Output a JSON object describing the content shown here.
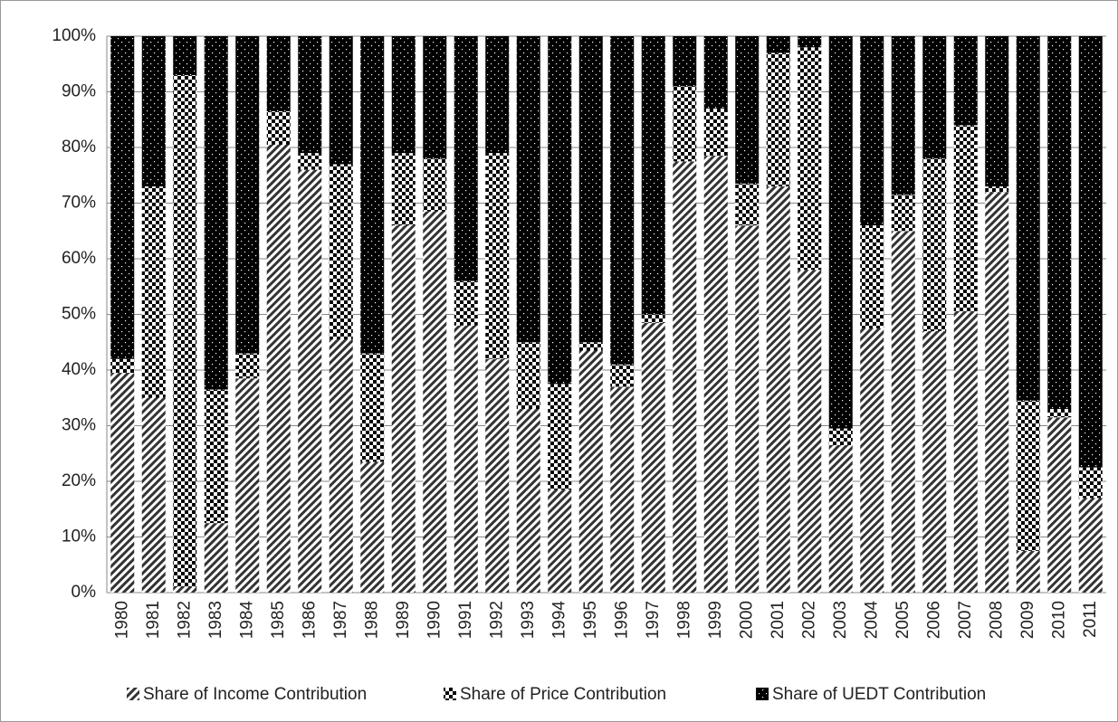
{
  "chart_data": {
    "type": "stacked_bar",
    "categories": [
      "1980",
      "1981",
      "1982",
      "1983",
      "1984",
      "1985",
      "1986",
      "1987",
      "1988",
      "1989",
      "1990",
      "1991",
      "1992",
      "1993",
      "1994",
      "1995",
      "1996",
      "1997",
      "1998",
      "1999",
      "2000",
      "2001",
      "2002",
      "2003",
      "2004",
      "2005",
      "2006",
      "2007",
      "2008",
      "2009",
      "2010",
      "2011"
    ],
    "series": [
      {
        "name": "Share of Income Contribution",
        "color": "#000000",
        "values": [
          39.5,
          35,
          1,
          12.5,
          38.5,
          80.5,
          76,
          45.5,
          23.5,
          66,
          68.5,
          48,
          42,
          33,
          18.5,
          43.5,
          37,
          48.5,
          77.5,
          78.5,
          66,
          73,
          58,
          26.5,
          47.5,
          65,
          47,
          50.5,
          72,
          7.5,
          31.5,
          17
        ]
      },
      {
        "name": "Share of Price Contribution",
        "color": "#000000",
        "values": [
          2.5,
          38,
          92,
          24,
          4.5,
          6,
          3,
          31.5,
          19.5,
          13,
          9.5,
          8,
          37,
          12,
          19,
          1.5,
          4,
          1.5,
          13.5,
          8.5,
          7.5,
          24,
          40,
          3,
          18.5,
          6.5,
          31,
          33.5,
          1,
          27,
          1.5,
          5.5
        ]
      },
      {
        "name": "Share of UEDT Contribution",
        "color": "#000000",
        "values": [
          58,
          27,
          7,
          63.5,
          57,
          13.5,
          21,
          23,
          57,
          21,
          22,
          44,
          21,
          55,
          62.5,
          55,
          59,
          50,
          9,
          13,
          26.5,
          3,
          2,
          70.5,
          34,
          28.5,
          22,
          16,
          27,
          65.5,
          67,
          77.5
        ]
      }
    ],
    "ylim": [
      0,
      100
    ],
    "yticks": [
      {
        "value": 0,
        "label": "0%"
      },
      {
        "value": 10,
        "label": "10%"
      },
      {
        "value": 20,
        "label": "20%"
      },
      {
        "value": 30,
        "label": "30%"
      },
      {
        "value": 40,
        "label": "40%"
      },
      {
        "value": 50,
        "label": "50%"
      },
      {
        "value": 60,
        "label": "60%"
      },
      {
        "value": 70,
        "label": "70%"
      },
      {
        "value": 80,
        "label": "80%"
      },
      {
        "value": 90,
        "label": "90%"
      },
      {
        "value": 100,
        "label": "100%"
      }
    ],
    "grid": true,
    "legend": "bottom"
  }
}
